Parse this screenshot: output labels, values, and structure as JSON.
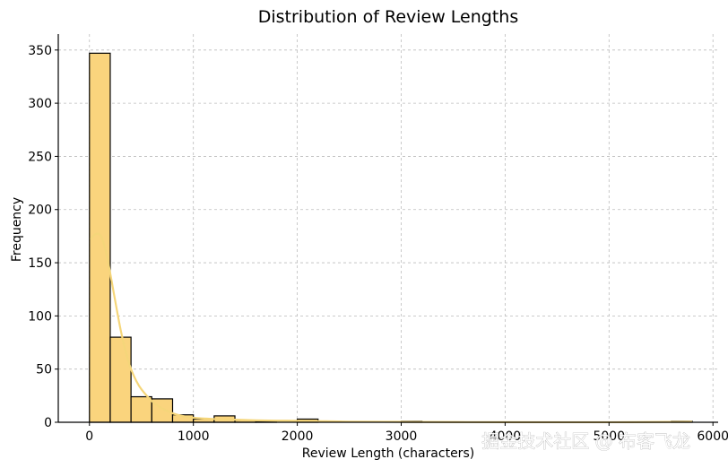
{
  "chart_data": {
    "type": "bar",
    "title": "Distribution of Review Lengths",
    "xlabel": "Review Length (characters)",
    "ylabel": "Frequency",
    "xlim": [
      -300,
      6050
    ],
    "ylim": [
      0,
      365
    ],
    "xticks": [
      0,
      1000,
      2000,
      3000,
      4000,
      5000,
      6000
    ],
    "yticks": [
      0,
      50,
      100,
      150,
      200,
      250,
      300,
      350
    ],
    "grid": true,
    "bin_width": 200,
    "bins": [
      {
        "start": 0,
        "count": 347
      },
      {
        "start": 200,
        "count": 80
      },
      {
        "start": 400,
        "count": 24
      },
      {
        "start": 600,
        "count": 22
      },
      {
        "start": 800,
        "count": 7
      },
      {
        "start": 1000,
        "count": 3
      },
      {
        "start": 1200,
        "count": 6
      },
      {
        "start": 1400,
        "count": 2
      },
      {
        "start": 1600,
        "count": 1
      },
      {
        "start": 1800,
        "count": 0
      },
      {
        "start": 2000,
        "count": 3
      },
      {
        "start": 2200,
        "count": 0
      },
      {
        "start": 2400,
        "count": 0
      },
      {
        "start": 2600,
        "count": 0
      },
      {
        "start": 2800,
        "count": 0
      },
      {
        "start": 3000,
        "count": 1
      },
      {
        "start": 3200,
        "count": 0
      },
      {
        "start": 3400,
        "count": 0
      },
      {
        "start": 3600,
        "count": 0
      },
      {
        "start": 3800,
        "count": 0
      },
      {
        "start": 4000,
        "count": 0
      },
      {
        "start": 4200,
        "count": 0
      },
      {
        "start": 4400,
        "count": 0
      },
      {
        "start": 4600,
        "count": 0
      },
      {
        "start": 4800,
        "count": 0
      },
      {
        "start": 5000,
        "count": 0
      },
      {
        "start": 5200,
        "count": 0
      },
      {
        "start": 5400,
        "count": 0
      },
      {
        "start": 5600,
        "count": 1
      },
      {
        "start": 5800,
        "count": 0
      }
    ],
    "kde": {
      "x": [
        10,
        60,
        110,
        160,
        200,
        250,
        300,
        350,
        400,
        450,
        500,
        600,
        700,
        800,
        900,
        1000,
        1200,
        1400,
        1600,
        1800,
        2000,
        2200,
        2500,
        3000,
        3500,
        4000,
        5000,
        5800
      ],
      "y": [
        172,
        177,
        175,
        160,
        140,
        113,
        87,
        66,
        50,
        39,
        31,
        20,
        13,
        8.5,
        5.8,
        4.2,
        3.0,
        2.4,
        1.8,
        1.5,
        1.4,
        1.1,
        0.6,
        0.4,
        0.2,
        0.1,
        0.05,
        0.5
      ]
    },
    "colors": {
      "bar": "#fad47d",
      "bar_edge": "#000000",
      "kde": "#f5d67a",
      "grid": "#bcbcbc"
    }
  },
  "watermark": "掘金技术社区 @ 布客飞龙"
}
